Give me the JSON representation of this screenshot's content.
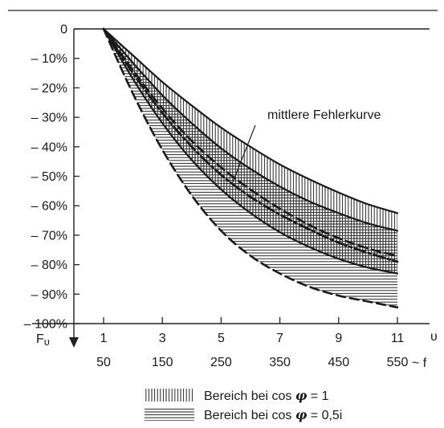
{
  "chart_data": {
    "type": "area",
    "title": "",
    "x_axis_label": "υ",
    "x2_axis_label": "~ f",
    "y_axis_label": "F_υ",
    "y_axis_label_main": "F",
    "y_axis_label_sub": "υ",
    "x_tick_values": [
      1,
      3,
      5,
      7,
      9,
      11
    ],
    "x_tick_labels": [
      "1",
      "3",
      "5",
      "7",
      "9",
      "11"
    ],
    "x2_tick_labels": [
      "50",
      "150",
      "250",
      "350",
      "450",
      "550"
    ],
    "x_range": [
      -1,
      12.5
    ],
    "y_range": [
      -100,
      0
    ],
    "y_tick_values": [
      0,
      -10,
      -20,
      -30,
      -40,
      -50,
      -60,
      -70,
      -80,
      -90,
      -100
    ],
    "y_tick_labels": [
      "0",
      "– 10%",
      "– 20%",
      "– 30%",
      "– 40%",
      "– 50%",
      "– 60%",
      "– 70%",
      "– 80%",
      "– 90%",
      "– 100%"
    ],
    "grid": false,
    "x": [
      1,
      2,
      3,
      4,
      5,
      6,
      7,
      8,
      9,
      10,
      11
    ],
    "series": [
      {
        "key": "cos1_upper",
        "style": "solid",
        "values": [
          0,
          -9,
          -18,
          -26,
          -33.5,
          -40,
          -46,
          -51,
          -55.5,
          -59.5,
          -62.5
        ]
      },
      {
        "key": "cos1_lower",
        "style": "dashed",
        "values": [
          0,
          -14,
          -27,
          -38,
          -47,
          -54.5,
          -61,
          -66.5,
          -71,
          -74.5,
          -77
        ]
      },
      {
        "key": "mean_upper",
        "style": "solid",
        "values": [
          0,
          -11.5,
          -22.5,
          -32,
          -40.5,
          -47.5,
          -53.5,
          -58.5,
          -62.5,
          -66,
          -68.5
        ]
      },
      {
        "key": "mean",
        "style": "dashdot",
        "values": [
          0,
          -15,
          -28.5,
          -40,
          -49.5,
          -57,
          -63,
          -68,
          -72.5,
          -76,
          -79
        ]
      },
      {
        "key": "cos05_upper",
        "style": "solid",
        "values": [
          0,
          -17,
          -32,
          -44.5,
          -54.5,
          -62.5,
          -69,
          -74,
          -78,
          -81,
          -83
        ]
      },
      {
        "key": "cos05_lower",
        "style": "dashed",
        "values": [
          0,
          -22,
          -41,
          -56.5,
          -68.5,
          -77,
          -83,
          -87.5,
          -90.5,
          -92.5,
          -94.5
        ]
      }
    ],
    "annotations": [
      {
        "text": "mittlere Fehlerkurve",
        "target_series": "mean",
        "target_x": 5.4
      }
    ],
    "legend": {
      "position": "bottom",
      "entries": [
        {
          "pattern": "vertical-hatch",
          "label": "Bereich bei cos",
          "symbol": "φ",
          "tail": " = 1"
        },
        {
          "pattern": "horizontal-hatch",
          "label": "Bereich bei cos",
          "symbol": "φ",
          "tail": " = 0,5i"
        }
      ]
    }
  }
}
